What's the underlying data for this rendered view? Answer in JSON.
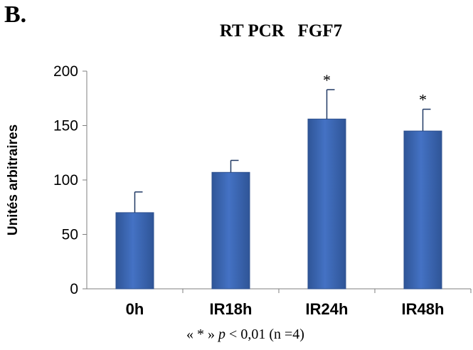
{
  "panel_label": "B.",
  "footnote": {
    "prefix": "« * »",
    "p_symbol": "p",
    "rest": "< 0,01 (n =4)"
  },
  "colors": {
    "bar_fill": "#4472c4",
    "bar_edge": "#2f528f",
    "axis": "#7f7f7f",
    "error_bar": "#1f3864"
  },
  "chart_data": {
    "type": "bar",
    "title": "RT PCR   FGF7",
    "xlabel": "",
    "ylabel": "Unités arbitraires",
    "ylim": [
      0,
      200
    ],
    "yticks": [
      0,
      50,
      100,
      150,
      200
    ],
    "categories": [
      "0h",
      "IR18h",
      "IR24h",
      "IR48h"
    ],
    "values": [
      70,
      107,
      156,
      145
    ],
    "errors": [
      19,
      11,
      27,
      20
    ],
    "significance": [
      "",
      "",
      "*",
      "*"
    ],
    "grid": false,
    "legend": "none"
  }
}
